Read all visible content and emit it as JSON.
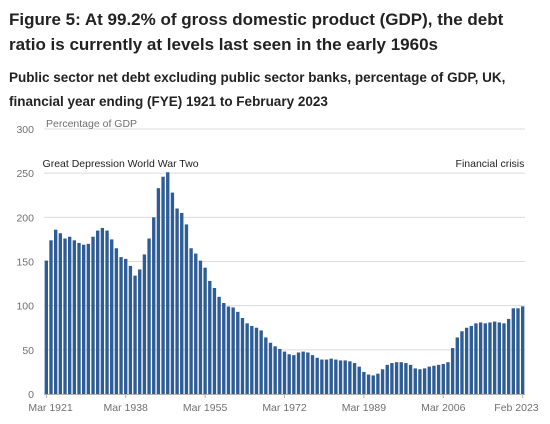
{
  "title": "Figure 5: At 99.2% of gross domestic product (GDP), the debt ratio is currently at levels last seen in the early 1960s",
  "subtitle": "Public sector net debt excluding public sector banks, percentage of GDP, UK, financial year ending (FYE) 1921 to February 2023",
  "chart_data": {
    "type": "bar",
    "title": "Figure 5: At 99.2% of gross domestic product (GDP), the debt ratio is currently at levels last seen in the early 1960s",
    "subtitle": "Public sector net debt excluding public sector banks, percentage of GDP, UK, financial year ending (FYE) 1921 to February 2023",
    "ylabel": "Percentage of GDP",
    "xlabel": "",
    "ylim": [
      0,
      300
    ],
    "yticks": [
      0,
      50,
      100,
      150,
      200,
      250,
      300
    ],
    "grid": true,
    "bar_color": "#2e5c95",
    "grid_color": "#dcdcdc",
    "categories": [
      "Mar 1921",
      "Mar 1922",
      "Mar 1923",
      "Mar 1924",
      "Mar 1925",
      "Mar 1926",
      "Mar 1927",
      "Mar 1928",
      "Mar 1929",
      "Mar 1930",
      "Mar 1931",
      "Mar 1932",
      "Mar 1933",
      "Mar 1934",
      "Mar 1935",
      "Mar 1936",
      "Mar 1937",
      "Mar 1938",
      "Mar 1939",
      "Mar 1940",
      "Mar 1941",
      "Mar 1942",
      "Mar 1943",
      "Mar 1944",
      "Mar 1945",
      "Mar 1946",
      "Mar 1947",
      "Mar 1948",
      "Mar 1949",
      "Mar 1950",
      "Mar 1951",
      "Mar 1952",
      "Mar 1953",
      "Mar 1954",
      "Mar 1955",
      "Mar 1956",
      "Mar 1957",
      "Mar 1958",
      "Mar 1959",
      "Mar 1960",
      "Mar 1961",
      "Mar 1962",
      "Mar 1963",
      "Mar 1964",
      "Mar 1965",
      "Mar 1966",
      "Mar 1967",
      "Mar 1968",
      "Mar 1969",
      "Mar 1970",
      "Mar 1971",
      "Mar 1972",
      "Mar 1973",
      "Mar 1974",
      "Mar 1975",
      "Mar 1976",
      "Mar 1977",
      "Mar 1978",
      "Mar 1979",
      "Mar 1980",
      "Mar 1981",
      "Mar 1982",
      "Mar 1983",
      "Mar 1984",
      "Mar 1985",
      "Mar 1986",
      "Mar 1987",
      "Mar 1988",
      "Mar 1989",
      "Mar 1990",
      "Mar 1991",
      "Mar 1992",
      "Mar 1993",
      "Mar 1994",
      "Mar 1995",
      "Mar 1996",
      "Mar 1997",
      "Mar 1998",
      "Mar 1999",
      "Mar 2000",
      "Mar 2001",
      "Mar 2002",
      "Mar 2003",
      "Mar 2004",
      "Mar 2005",
      "Mar 2006",
      "Mar 2007",
      "Mar 2008",
      "Mar 2009",
      "Mar 2010",
      "Mar 2011",
      "Mar 2012",
      "Mar 2013",
      "Mar 2014",
      "Mar 2015",
      "Mar 2016",
      "Mar 2017",
      "Mar 2018",
      "Mar 2019",
      "Mar 2020",
      "Mar 2021",
      "Mar 2022",
      "Feb 2023"
    ],
    "values": [
      151,
      174,
      186,
      182,
      176,
      178,
      174,
      171,
      169,
      170,
      178,
      185,
      188,
      185,
      175,
      165,
      155,
      153,
      145,
      134,
      141,
      158,
      176,
      200,
      233,
      246,
      251,
      228,
      210,
      205,
      192,
      165,
      159,
      151,
      143,
      128,
      120,
      110,
      103,
      99,
      98,
      93,
      86,
      80,
      77,
      75,
      72,
      64,
      58,
      54,
      51,
      48,
      45,
      44,
      47,
      48,
      47,
      44,
      41,
      39,
      39,
      40,
      39,
      38,
      38,
      37,
      35,
      31,
      25,
      22,
      21,
      23,
      28,
      33,
      35,
      36,
      36,
      35,
      33,
      29,
      28,
      29,
      31,
      32,
      33,
      34,
      36,
      52,
      64,
      71,
      75,
      77,
      80,
      81,
      80,
      81,
      82,
      81,
      80,
      85,
      97,
      97,
      99.2
    ],
    "x_tick_labels": [
      "Mar 1921",
      "Mar 1938",
      "Mar 1955",
      "Mar 1972",
      "Mar 1989",
      "Mar 2006",
      "Feb 2023"
    ],
    "annotations": [
      {
        "text": "Great Depression",
        "x": "Mar 1929"
      },
      {
        "text": "World War Two",
        "x": "Mar 1946"
      },
      {
        "text": "Financial crisis",
        "x": "Mar 2016"
      }
    ]
  }
}
